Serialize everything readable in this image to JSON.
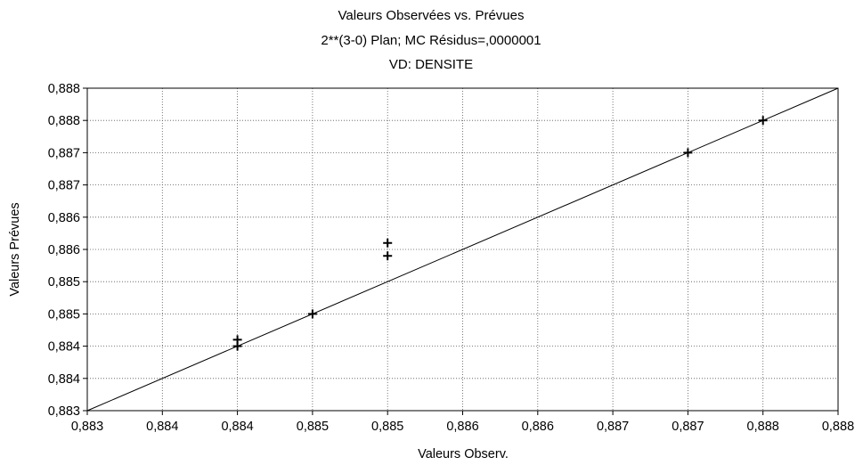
{
  "chart_data": {
    "type": "scatter",
    "title": "Valeurs Observées vs. Prévues",
    "subtitle": "2**(3-0) Plan; MC Résidus=,0000001",
    "subtitle2": "VD: DENSITE",
    "xlabel": "Valeurs Observ.",
    "ylabel": "Valeurs Prévues",
    "x_tick_labels": [
      "0,883",
      "0,884",
      "0,884",
      "0,885",
      "0,885",
      "0,886",
      "0,886",
      "0,887",
      "0,887",
      "0,888",
      "0,888"
    ],
    "y_tick_labels": [
      "0,888",
      "0,888",
      "0,887",
      "0,887",
      "0,886",
      "0,886",
      "0,885",
      "0,885",
      "0,884",
      "0,884",
      "0,883"
    ],
    "xlim": [
      0.883,
      0.888
    ],
    "ylim": [
      0.883,
      0.888
    ],
    "grid": true,
    "marker": "plus",
    "points": [
      {
        "x": 0.884,
        "y": 0.8841
      },
      {
        "x": 0.884,
        "y": 0.884
      },
      {
        "x": 0.8845,
        "y": 0.8845
      },
      {
        "x": 0.885,
        "y": 0.8856
      },
      {
        "x": 0.885,
        "y": 0.8854
      },
      {
        "x": 0.887,
        "y": 0.887
      },
      {
        "x": 0.8875,
        "y": 0.8875
      }
    ],
    "fit_line": {
      "x": [
        0.883,
        0.888
      ],
      "y": [
        0.883,
        0.888
      ]
    }
  }
}
